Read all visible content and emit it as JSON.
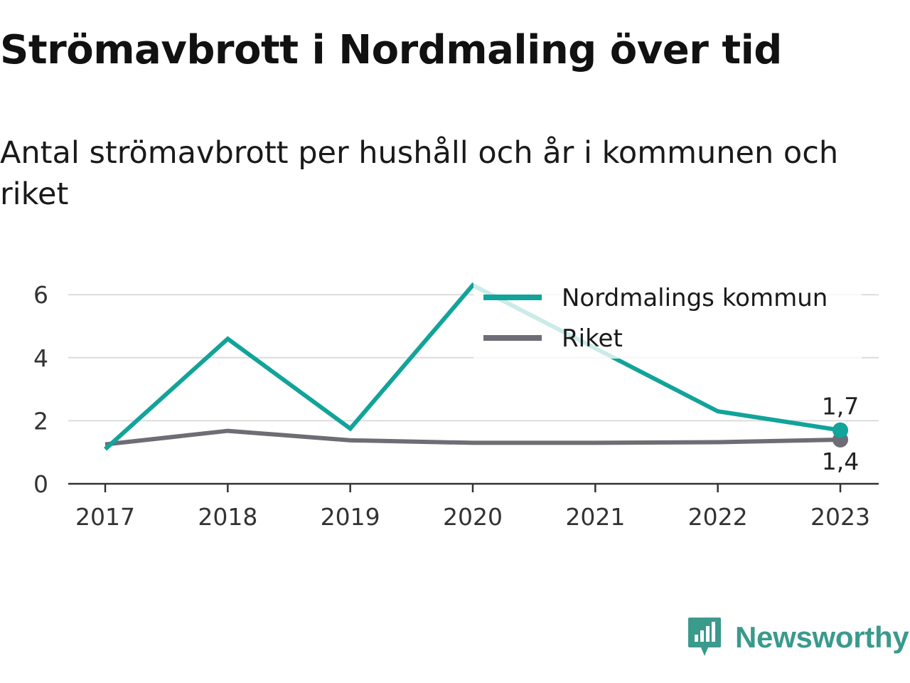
{
  "title": "Strömavbrott i Nordmaling över tid",
  "subtitle": "Antal strömavbrott per hushåll och år i kommunen och riket",
  "brand": {
    "name": "Newsworthy",
    "icon": "newsworthy-logo-icon",
    "color": "#3a9a8c"
  },
  "chart_data": {
    "type": "line",
    "x": [
      "2017",
      "2018",
      "2019",
      "2020",
      "2021",
      "2022",
      "2023"
    ],
    "ylim": [
      0,
      6.4
    ],
    "yticks": [
      0,
      2,
      4,
      6
    ],
    "grid": true,
    "legend_position": "top-right",
    "series": [
      {
        "name": "Nordmalings kommun",
        "color": "#12a39a",
        "values": [
          1.1,
          4.6,
          1.75,
          6.3,
          4.3,
          2.3,
          1.7
        ]
      },
      {
        "name": "Riket",
        "color": "#6e6c74",
        "values": [
          1.25,
          1.68,
          1.38,
          1.3,
          1.3,
          1.32,
          1.4
        ]
      }
    ],
    "end_labels": [
      "1,7",
      "1,4"
    ]
  }
}
